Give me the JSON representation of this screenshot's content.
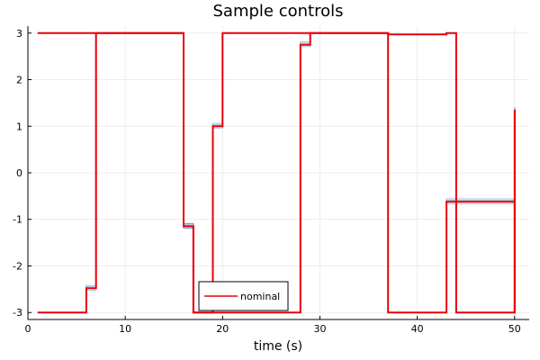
{
  "chart_data": {
    "type": "line",
    "title": "Sample controls",
    "xlabel": "time (s)",
    "ylabel": "",
    "xlim": [
      0,
      51.5
    ],
    "ylim": [
      -3.15,
      3.15
    ],
    "xticks": [
      0,
      10,
      20,
      30,
      40,
      50
    ],
    "yticks": [
      -3,
      -2,
      -1,
      0,
      1,
      2,
      3
    ],
    "grid": true,
    "legend_placement": "bottom-center",
    "series": [
      {
        "name": "nominal",
        "color": "#e8000b",
        "step": "post",
        "x": [
          1,
          6,
          7,
          16,
          17,
          28,
          29,
          37,
          43,
          44,
          50,
          50.01
        ],
        "y": [
          -3,
          -2.48,
          3,
          -1.15,
          -3,
          2.75,
          3,
          -3,
          -0.62,
          -3,
          -3,
          1.35
        ]
      },
      {
        "name": "",
        "color": "#e8000b",
        "step": "post",
        "x": [
          1,
          16,
          17,
          19,
          20,
          37,
          43,
          44,
          50,
          50.01
        ],
        "y": [
          3,
          -1.15,
          -3,
          1.0,
          3,
          2.97,
          3,
          -0.62,
          -3,
          1.35
        ]
      }
    ],
    "samples_color": "#4a7fb5"
  }
}
